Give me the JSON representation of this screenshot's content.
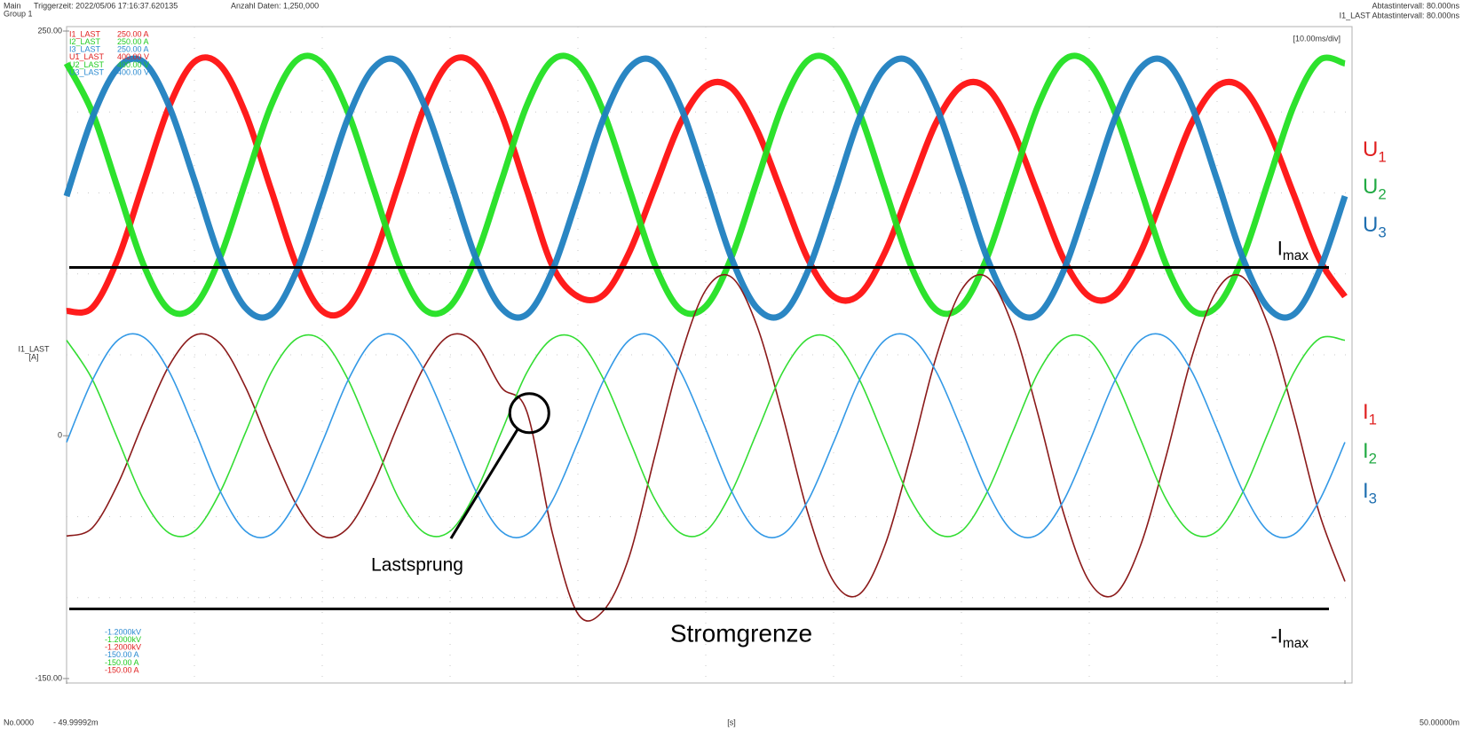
{
  "chart_data": {
    "type": "line",
    "header": {
      "main": "Main",
      "group": "Group 1",
      "trigger": "Triggerzeit: 2022/05/06 17:16:37.620135",
      "count": "Anzahl Daten: 1,250,000",
      "interval": "Abtastintervall: 80.000ns",
      "channel_interval": "I1_LAST Abtastintervall: 80.000ns"
    },
    "time_div": "[10.00ms/div]",
    "y_label": "I1_LAST",
    "y_unit": "[A]",
    "record_no": "No.0000",
    "x_unit": "[s]",
    "xlim": [
      -50,
      50
    ],
    "xticks": [
      {
        "value": -49.99992,
        "label": "- 49.99992m"
      },
      {
        "value": 50,
        "label": "50.00000m"
      }
    ],
    "ylim": [
      -150,
      250
    ],
    "yticks": [
      {
        "value": 250,
        "label": "250.00"
      },
      0,
      {
        "value": -150,
        "label": "-150.00"
      }
    ],
    "xgrid": [
      -40,
      -30,
      -20,
      -10,
      0,
      10,
      20,
      30,
      40
    ],
    "ygrid": [
      200,
      150,
      100,
      50,
      -50,
      -100
    ],
    "x": [
      -50,
      -48,
      -46,
      -44,
      -42,
      -40,
      -38,
      -36,
      -34,
      -32,
      -30,
      -28,
      -26,
      -24,
      -22,
      -20,
      -18,
      -16,
      -14,
      -12,
      -10,
      -8,
      -6,
      -4,
      -2,
      0,
      2,
      4,
      6,
      8,
      10,
      12,
      14,
      16,
      18,
      20,
      22,
      24,
      26,
      28,
      30,
      32,
      34,
      36,
      38,
      40,
      42,
      44,
      46,
      48,
      50
    ],
    "series": [
      {
        "name": "I1_LAST",
        "scale": "250.00 A",
        "color": "#8b1a1a",
        "legend_color": "#e02020",
        "values": [
          -62,
          -57,
          -30,
          8,
          43,
          62,
          57,
          30,
          -8,
          -43,
          -62,
          -57,
          -30,
          8,
          43,
          62,
          57,
          30,
          15,
          -60,
          -110,
          -108,
          -75,
          -13,
          48,
          90,
          98,
          68,
          13,
          -48,
          -90,
          -98,
          -68,
          -13,
          48,
          90,
          98,
          68,
          13,
          -48,
          -90,
          -98,
          -68,
          -13,
          48,
          90,
          98,
          68,
          13,
          -48,
          -90
        ]
      },
      {
        "name": "I2_LAST",
        "scale": "250.00 A",
        "color": "#33dd33",
        "legend_color": "#22cc22",
        "values": [
          59,
          35,
          -2,
          -39,
          -60,
          -59,
          -35,
          2,
          39,
          60,
          59,
          35,
          -2,
          -39,
          -60,
          -59,
          -35,
          2,
          39,
          60,
          59,
          35,
          -2,
          -39,
          -60,
          -59,
          -35,
          2,
          39,
          60,
          59,
          35,
          -2,
          -39,
          -60,
          -59,
          -35,
          2,
          39,
          60,
          59,
          35,
          -2,
          -39,
          -60,
          -59,
          -35,
          2,
          39,
          60,
          59
        ]
      },
      {
        "name": "I3_LAST",
        "scale": "250.00 A",
        "color": "#3399e6",
        "legend_color": "#2a8ad0",
        "values": [
          -4,
          34,
          59,
          61,
          40,
          4,
          -34,
          -59,
          -61,
          -40,
          -4,
          34,
          59,
          61,
          40,
          4,
          -34,
          -59,
          -61,
          -40,
          -4,
          34,
          59,
          61,
          40,
          4,
          -34,
          -59,
          -61,
          -40,
          -4,
          34,
          59,
          61,
          40,
          4,
          -34,
          -59,
          -61,
          -40,
          -4,
          34,
          59,
          61,
          40,
          4,
          -34,
          -59,
          -61,
          -40,
          -4
        ]
      },
      {
        "name": "U1_LAST",
        "scale": "400.00 V",
        "color": "#ff1010",
        "legend_color": "#e02020",
        "values": [
          77,
          79,
          109,
          156,
          203,
          231,
          229,
          199,
          152,
          105,
          77,
          79,
          109,
          156,
          203,
          231,
          229,
          199,
          152,
          105,
          86,
          87,
          113,
          153,
          193,
          216,
          215,
          189,
          149,
          109,
          86,
          87,
          113,
          153,
          193,
          216,
          215,
          189,
          149,
          109,
          86,
          87,
          113,
          153,
          193,
          216,
          215,
          189,
          149,
          109,
          86
        ]
      },
      {
        "name": "U2_LAST",
        "scale": "400.00 V",
        "color": "#22e022",
        "legend_color": "#22cc22",
        "values": [
          230,
          200,
          153,
          106,
          78,
          80,
          110,
          157,
          204,
          232,
          230,
          200,
          153,
          106,
          78,
          80,
          110,
          157,
          204,
          232,
          230,
          200,
          153,
          106,
          78,
          80,
          110,
          157,
          204,
          232,
          230,
          200,
          153,
          106,
          78,
          80,
          110,
          157,
          204,
          232,
          230,
          200,
          153,
          106,
          78,
          80,
          110,
          157,
          204,
          232,
          230
        ]
      },
      {
        "name": "U3_LAST",
        "scale": "400.00 V",
        "color": "#1f7fc0",
        "legend_color": "#2a8ad0",
        "values": [
          148,
          196,
          227,
          231,
          204,
          158,
          110,
          79,
          75,
          102,
          148,
          196,
          227,
          231,
          204,
          158,
          110,
          79,
          75,
          102,
          148,
          196,
          227,
          231,
          204,
          158,
          110,
          79,
          75,
          102,
          148,
          196,
          227,
          231,
          204,
          158,
          110,
          79,
          75,
          102,
          148,
          196,
          227,
          231,
          204,
          158,
          110,
          79,
          75,
          102,
          148
        ]
      }
    ],
    "scale_labels": [
      {
        "text": "-1.2000kV",
        "color": "#2a8ad0"
      },
      {
        "text": "-1.2000kV",
        "color": "#22cc22"
      },
      {
        "text": "-1.2000kV",
        "color": "#e02020"
      },
      {
        "text": "-150.00 A",
        "color": "#2a8ad0"
      },
      {
        "text": "-150.00 A",
        "color": "#22cc22"
      },
      {
        "text": "-150.00 A",
        "color": "#e02020"
      }
    ],
    "side_labels": [
      {
        "main": "U",
        "sub": "1",
        "color": "#e02020"
      },
      {
        "main": "U",
        "sub": "2",
        "color": "#22aa44"
      },
      {
        "main": "U",
        "sub": "3",
        "color": "#1f6fb0"
      },
      {
        "main": "I",
        "sub": "1",
        "color": "#e02020"
      },
      {
        "main": "I",
        "sub": "2",
        "color": "#22aa44"
      },
      {
        "main": "I",
        "sub": "3",
        "color": "#1f6fb0"
      }
    ],
    "hlines": [
      {
        "value": 104,
        "main": "I",
        "sub": "max"
      },
      {
        "value": -107,
        "main": "-I",
        "sub": "max"
      }
    ],
    "annotations": [
      {
        "text": "Lastsprung",
        "x": -13.8,
        "y": 14
      },
      {
        "text": "Stromgrenze"
      }
    ]
  }
}
